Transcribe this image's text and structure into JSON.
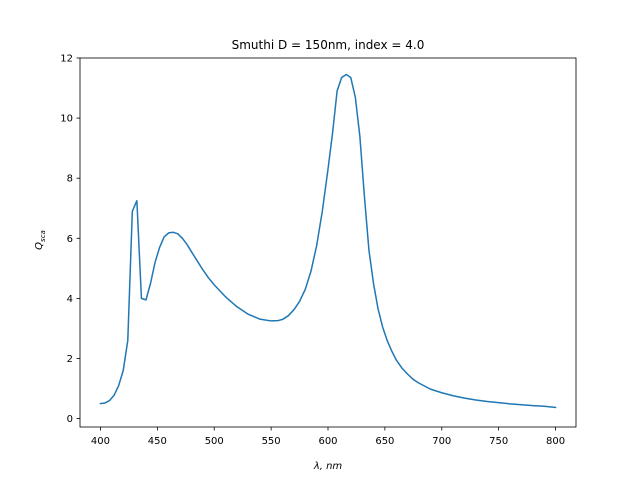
{
  "chart_data": {
    "type": "line",
    "title": "Smuthi D = 150nm, index = 4.0",
    "xlabel": "λ, nm",
    "ylabel_main": "Q",
    "ylabel_sub": "sca",
    "xlim": [
      382,
      818
    ],
    "ylim": [
      -0.28,
      12.0
    ],
    "xticks": [
      400,
      450,
      500,
      550,
      600,
      650,
      700,
      750,
      800
    ],
    "yticks": [
      0,
      2,
      4,
      6,
      8,
      10,
      12
    ],
    "grid": false,
    "line_color": "#1f77b4",
    "series": [
      {
        "x": [
          400,
          404,
          408,
          412,
          416,
          420,
          424,
          428,
          432,
          436,
          440,
          444,
          448,
          452,
          456,
          460,
          464,
          468,
          472,
          476,
          480,
          485,
          490,
          495,
          500,
          510,
          520,
          530,
          540,
          550,
          556,
          560,
          565,
          570,
          575,
          580,
          585,
          590,
          595,
          600,
          604,
          608,
          612,
          616,
          620,
          624,
          628,
          632,
          636,
          640,
          644,
          648,
          652,
          656,
          660,
          665,
          670,
          675,
          680,
          690,
          700,
          710,
          720,
          730,
          740,
          750,
          760,
          770,
          780,
          790,
          800
        ],
        "y": [
          0.5,
          0.52,
          0.6,
          0.78,
          1.1,
          1.6,
          2.6,
          6.9,
          7.25,
          4.0,
          3.95,
          4.5,
          5.2,
          5.7,
          6.05,
          6.18,
          6.2,
          6.15,
          6.0,
          5.8,
          5.55,
          5.25,
          4.95,
          4.68,
          4.45,
          4.05,
          3.72,
          3.47,
          3.31,
          3.25,
          3.26,
          3.3,
          3.42,
          3.62,
          3.9,
          4.3,
          4.9,
          5.75,
          6.9,
          8.3,
          9.5,
          10.9,
          11.35,
          11.45,
          11.35,
          10.7,
          9.4,
          7.4,
          5.6,
          4.5,
          3.65,
          3.05,
          2.6,
          2.25,
          1.95,
          1.68,
          1.48,
          1.3,
          1.18,
          0.98,
          0.86,
          0.76,
          0.68,
          0.62,
          0.57,
          0.53,
          0.49,
          0.46,
          0.43,
          0.41,
          0.37
        ]
      }
    ]
  }
}
